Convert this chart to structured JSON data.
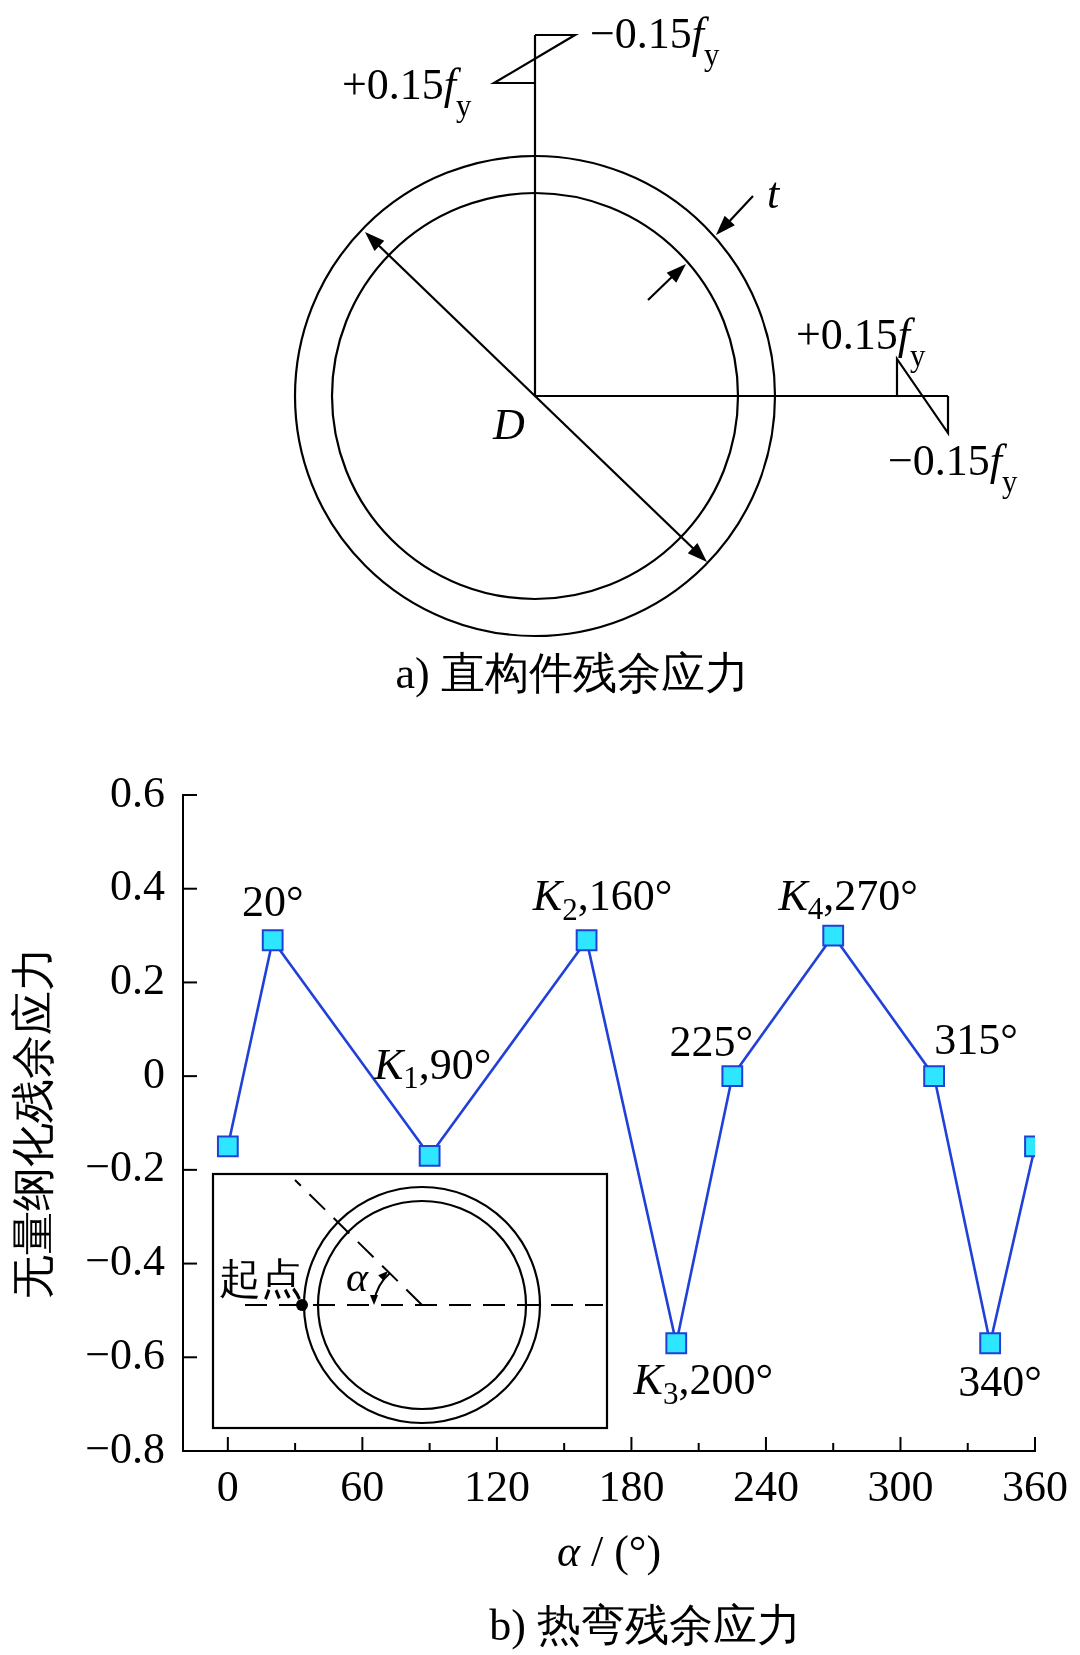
{
  "chart_data": [
    {
      "type": "other",
      "title": "a) 直构件残余应力",
      "annotations": [
        "−0.15f$_{y}$",
        "+0.15f$_{y}$",
        "t",
        "+0.15f$_{y}$",
        "D",
        "−0.15f$_{y}$"
      ]
    },
    {
      "type": "line",
      "title": "b) 热弯残余应力",
      "xlabel": "α / (°)",
      "ylabel": "无量纲化残余应力",
      "x": [
        0,
        20,
        90,
        160,
        200,
        225,
        270,
        315,
        340,
        360
      ],
      "values": [
        -0.15,
        0.29,
        -0.17,
        0.29,
        -0.57,
        0,
        0.3,
        0,
        -0.57,
        -0.15
      ],
      "color": "#2040d8",
      "marker": "square",
      "line_style": "solid",
      "xlim": [
        -20,
        360
      ],
      "xticks": [
        0,
        {
          "value": 30,
          "label": null
        },
        60,
        {
          "value": 90,
          "label": null
        },
        120,
        {
          "value": 150,
          "label": null
        },
        180,
        {
          "value": 210,
          "label": null
        },
        240,
        {
          "value": 270,
          "label": null
        },
        300,
        {
          "value": 330,
          "label": null
        },
        360
      ],
      "ylim": [
        -0.8,
        0.6
      ],
      "yticks": [
        {
          "value": -0.8,
          "label": "−0.8"
        },
        {
          "value": -0.6,
          "label": "−0.6"
        },
        {
          "value": -0.4,
          "label": "−0.4"
        },
        {
          "value": -0.2,
          "label": "−0.2"
        },
        0,
        0.2,
        0.4,
        0.6
      ],
      "annotations": [
        {
          "text": "20°",
          "x": 20,
          "y": 0.29
        },
        {
          "text": "K$_{1}$,90°",
          "x": 90,
          "y": -0.17
        },
        {
          "text": "K$_{2}$,160°",
          "x": 160,
          "y": 0.29
        },
        {
          "text": "K$_{3}$,200°",
          "x": 200,
          "y": -0.57
        },
        {
          "text": "225°",
          "x": 225,
          "y": 0
        },
        {
          "text": "K$_{4}$,270°",
          "x": 270,
          "y": 0.3
        },
        {
          "text": "315°",
          "x": 315,
          "y": 0
        },
        {
          "text": "340°",
          "x": 340,
          "y": -0.57
        },
        "起点",
        "α"
      ]
    }
  ]
}
